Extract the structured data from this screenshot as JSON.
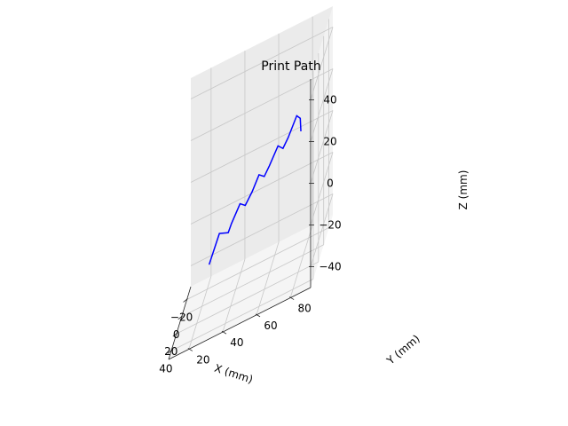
{
  "chart_data": {
    "type": "line3d",
    "title": "Print Path",
    "xlabel": "X (mm)",
    "ylabel": "Y (mm)",
    "zlabel": "Z (mm)",
    "xlim": [
      -35,
      50
    ],
    "ylim": [
      8,
      92
    ],
    "zlim": [
      -50,
      50
    ],
    "x_ticks": [
      -20,
      0,
      20,
      40
    ],
    "x_tick_labels": [
      "−20",
      "0",
      "20",
      "40"
    ],
    "y_ticks": [
      20,
      40,
      60,
      80
    ],
    "y_tick_labels": [
      "20",
      "40",
      "60",
      "80"
    ],
    "z_ticks": [
      -40,
      -20,
      0,
      20,
      40
    ],
    "z_tick_labels": [
      "−40",
      "−20",
      "0",
      "20",
      "40"
    ],
    "grid": true,
    "series": [
      {
        "color": "#0000ff",
        "points": [
          [
            5,
            25,
            -30
          ],
          [
            -2,
            30,
            -20
          ],
          [
            3,
            36,
            -20
          ],
          [
            10,
            39,
            -14
          ],
          [
            3,
            43,
            -9
          ],
          [
            9,
            47,
            -9
          ],
          [
            15,
            52,
            -2
          ],
          [
            8,
            55,
            2
          ],
          [
            14,
            59,
            2
          ],
          [
            20,
            63,
            8
          ],
          [
            13,
            67,
            13
          ],
          [
            20,
            71,
            13
          ],
          [
            26,
            75,
            19
          ],
          [
            19,
            79,
            25
          ],
          [
            25,
            82,
            25
          ],
          [
            29,
            83,
            20
          ]
        ]
      }
    ]
  }
}
